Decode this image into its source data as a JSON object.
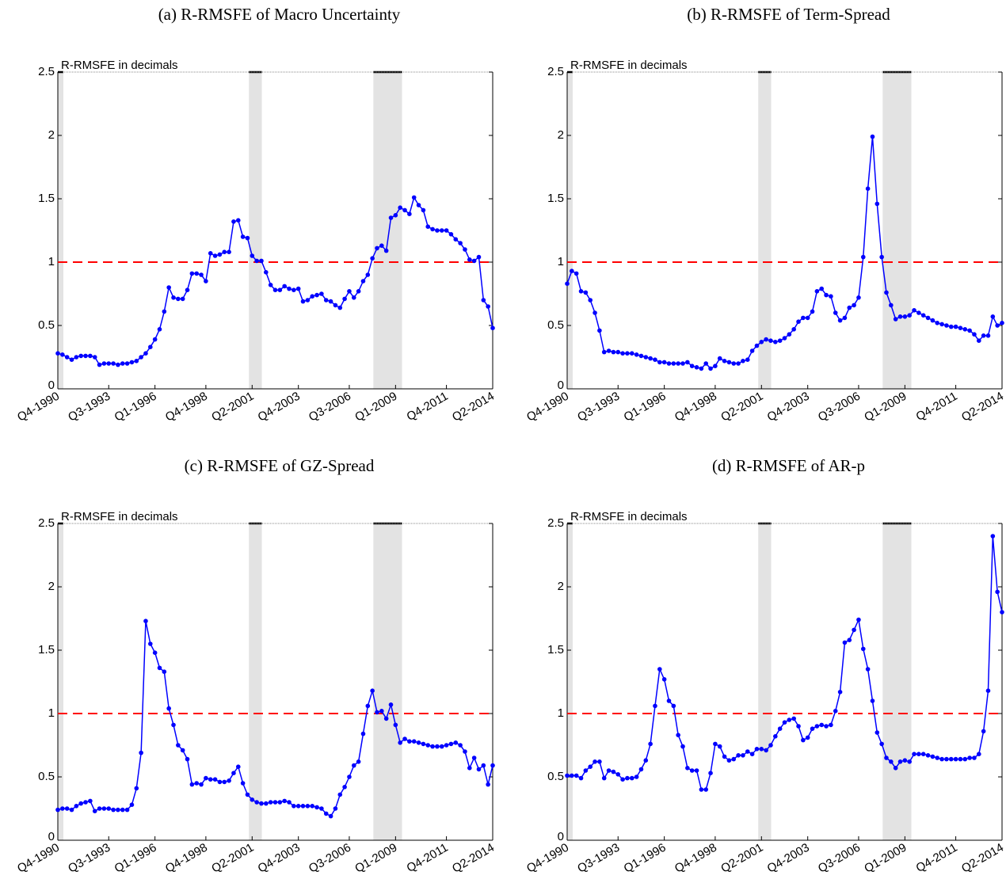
{
  "chart_data": [
    {
      "type": "line",
      "title": "(a) R-RMSFE of Macro Uncertainty",
      "ylabel": "R-RMSFE in decimals",
      "categories": [
        "Q4-1990",
        null,
        null,
        null,
        null,
        null,
        null,
        null,
        null,
        null,
        null,
        "Q3-1993",
        null,
        null,
        null,
        null,
        null,
        null,
        null,
        null,
        null,
        "Q1-1996",
        null,
        null,
        null,
        null,
        null,
        null,
        null,
        null,
        null,
        null,
        "Q4-1998",
        null,
        null,
        null,
        null,
        null,
        null,
        null,
        null,
        null,
        "Q2-2001",
        null,
        null,
        null,
        null,
        null,
        null,
        null,
        null,
        null,
        "Q4-2003",
        null,
        null,
        null,
        null,
        null,
        null,
        null,
        null,
        null,
        null,
        "Q3-2006",
        null,
        null,
        null,
        null,
        null,
        null,
        null,
        null,
        null,
        "Q1-2009",
        null,
        null,
        null,
        null,
        null,
        null,
        null,
        null,
        null,
        null,
        "Q4-2011",
        null,
        null,
        null,
        null,
        null,
        null,
        null,
        null,
        null,
        "Q2-2014"
      ],
      "values": [
        0.28,
        0.27,
        0.25,
        0.23,
        0.25,
        0.26,
        0.26,
        0.26,
        0.25,
        0.19,
        0.2,
        0.2,
        0.2,
        0.19,
        0.2,
        0.2,
        0.21,
        0.22,
        0.25,
        0.28,
        0.33,
        0.39,
        0.47,
        0.61,
        0.8,
        0.72,
        0.71,
        0.71,
        0.78,
        0.91,
        0.91,
        0.9,
        0.85,
        1.07,
        1.05,
        1.06,
        1.08,
        1.08,
        1.32,
        1.33,
        1.2,
        1.19,
        1.05,
        1.01,
        1.01,
        0.92,
        0.82,
        0.78,
        0.78,
        0.81,
        0.79,
        0.78,
        0.79,
        0.69,
        0.7,
        0.73,
        0.74,
        0.75,
        0.7,
        0.69,
        0.66,
        0.64,
        0.71,
        0.77,
        0.72,
        0.77,
        0.85,
        0.9,
        1.03,
        1.11,
        1.13,
        1.09,
        1.35,
        1.37,
        1.43,
        1.41,
        1.38,
        1.51,
        1.45,
        1.41,
        1.28,
        1.26,
        1.25,
        1.25,
        1.25,
        1.22,
        1.18,
        1.15,
        1.1,
        1.02,
        1.01,
        1.04,
        0.7,
        0.65,
        0.48
      ],
      "color": "#0000ff",
      "ylim": [
        0,
        2.5
      ],
      "yticks": [
        0,
        0.5,
        1,
        1.5,
        2,
        2.5
      ],
      "hline": 1,
      "hline_color": "#ff0000",
      "shading": [
        [
          0,
          1.2
        ],
        [
          41.3,
          44.1
        ],
        [
          68.2,
          74.4
        ]
      ]
    },
    {
      "type": "line",
      "title": "(b) R-RMSFE of Term-Spread",
      "ylabel": "R-RMSFE in decimals",
      "categories": [
        "Q4-1990",
        null,
        null,
        null,
        null,
        null,
        null,
        null,
        null,
        null,
        null,
        "Q3-1993",
        null,
        null,
        null,
        null,
        null,
        null,
        null,
        null,
        null,
        "Q1-1996",
        null,
        null,
        null,
        null,
        null,
        null,
        null,
        null,
        null,
        null,
        "Q4-1998",
        null,
        null,
        null,
        null,
        null,
        null,
        null,
        null,
        null,
        "Q2-2001",
        null,
        null,
        null,
        null,
        null,
        null,
        null,
        null,
        null,
        "Q4-2003",
        null,
        null,
        null,
        null,
        null,
        null,
        null,
        null,
        null,
        null,
        "Q3-2006",
        null,
        null,
        null,
        null,
        null,
        null,
        null,
        null,
        null,
        "Q1-2009",
        null,
        null,
        null,
        null,
        null,
        null,
        null,
        null,
        null,
        null,
        "Q4-2011",
        null,
        null,
        null,
        null,
        null,
        null,
        null,
        null,
        null,
        "Q2-2014"
      ],
      "values": [
        0.83,
        0.93,
        0.91,
        0.77,
        0.76,
        0.7,
        0.6,
        0.46,
        0.29,
        0.3,
        0.29,
        0.29,
        0.28,
        0.28,
        0.28,
        0.27,
        0.26,
        0.25,
        0.24,
        0.23,
        0.21,
        0.21,
        0.2,
        0.2,
        0.2,
        0.2,
        0.21,
        0.18,
        0.17,
        0.16,
        0.2,
        0.16,
        0.18,
        0.24,
        0.22,
        0.21,
        0.2,
        0.2,
        0.22,
        0.23,
        0.3,
        0.34,
        0.37,
        0.39,
        0.38,
        0.37,
        0.38,
        0.4,
        0.43,
        0.47,
        0.53,
        0.56,
        0.56,
        0.61,
        0.77,
        0.79,
        0.74,
        0.73,
        0.6,
        0.54,
        0.56,
        0.64,
        0.66,
        0.72,
        1.04,
        1.58,
        1.99,
        1.46,
        1.04,
        0.76,
        0.66,
        0.55,
        0.57,
        0.57,
        0.58,
        0.62,
        0.6,
        0.58,
        0.56,
        0.54,
        0.52,
        0.51,
        0.5,
        0.49,
        0.49,
        0.48,
        0.47,
        0.46,
        0.43,
        0.38,
        0.42,
        0.42,
        0.57,
        0.5,
        0.52
      ],
      "color": "#0000ff",
      "ylim": [
        0,
        2.5
      ],
      "yticks": [
        0,
        0.5,
        1,
        1.5,
        2,
        2.5
      ],
      "hline": 1,
      "hline_color": "#ff0000",
      "shading": [
        [
          0,
          1.2
        ],
        [
          41.3,
          44.1
        ],
        [
          68.2,
          74.4
        ]
      ]
    },
    {
      "type": "line",
      "title": "(c) R-RMSFE of GZ-Spread",
      "ylabel": "R-RMSFE in decimals",
      "categories": [
        "Q4-1990",
        null,
        null,
        null,
        null,
        null,
        null,
        null,
        null,
        null,
        null,
        "Q3-1993",
        null,
        null,
        null,
        null,
        null,
        null,
        null,
        null,
        null,
        "Q1-1996",
        null,
        null,
        null,
        null,
        null,
        null,
        null,
        null,
        null,
        null,
        "Q4-1998",
        null,
        null,
        null,
        null,
        null,
        null,
        null,
        null,
        null,
        "Q2-2001",
        null,
        null,
        null,
        null,
        null,
        null,
        null,
        null,
        null,
        "Q4-2003",
        null,
        null,
        null,
        null,
        null,
        null,
        null,
        null,
        null,
        null,
        "Q3-2006",
        null,
        null,
        null,
        null,
        null,
        null,
        null,
        null,
        null,
        "Q1-2009",
        null,
        null,
        null,
        null,
        null,
        null,
        null,
        null,
        null,
        null,
        "Q4-2011",
        null,
        null,
        null,
        null,
        null,
        null,
        null,
        null,
        null,
        "Q2-2014"
      ],
      "values": [
        0.24,
        0.25,
        0.25,
        0.24,
        0.27,
        0.29,
        0.3,
        0.31,
        0.23,
        0.25,
        0.25,
        0.25,
        0.24,
        0.24,
        0.24,
        0.24,
        0.28,
        0.41,
        0.69,
        1.73,
        1.55,
        1.48,
        1.36,
        1.33,
        1.04,
        0.91,
        0.75,
        0.71,
        0.64,
        0.44,
        0.45,
        0.44,
        0.49,
        0.48,
        0.48,
        0.46,
        0.46,
        0.47,
        0.53,
        0.58,
        0.45,
        0.36,
        0.32,
        0.3,
        0.29,
        0.29,
        0.3,
        0.3,
        0.3,
        0.31,
        0.3,
        0.27,
        0.27,
        0.27,
        0.27,
        0.27,
        0.26,
        0.25,
        0.21,
        0.19,
        0.25,
        0.36,
        0.42,
        0.5,
        0.59,
        0.62,
        0.84,
        1.06,
        1.18,
        1.01,
        1.02,
        0.96,
        1.07,
        0.91,
        0.77,
        0.8,
        0.78,
        0.78,
        0.77,
        0.76,
        0.75,
        0.74,
        0.74,
        0.74,
        0.75,
        0.76,
        0.77,
        0.75,
        0.7,
        0.57,
        0.65,
        0.56,
        0.59,
        0.44,
        0.59
      ],
      "color": "#0000ff",
      "ylim": [
        0,
        2.5
      ],
      "yticks": [
        0,
        0.5,
        1,
        1.5,
        2,
        2.5
      ],
      "hline": 1,
      "hline_color": "#ff0000",
      "shading": [
        [
          0,
          1.2
        ],
        [
          41.3,
          44.1
        ],
        [
          68.2,
          74.4
        ]
      ]
    },
    {
      "type": "line",
      "title": "(d) R-RMSFE of AR-p",
      "ylabel": "R-RMSFE in decimals",
      "categories": [
        "Q4-1990",
        null,
        null,
        null,
        null,
        null,
        null,
        null,
        null,
        null,
        null,
        "Q3-1993",
        null,
        null,
        null,
        null,
        null,
        null,
        null,
        null,
        null,
        "Q1-1996",
        null,
        null,
        null,
        null,
        null,
        null,
        null,
        null,
        null,
        null,
        "Q4-1998",
        null,
        null,
        null,
        null,
        null,
        null,
        null,
        null,
        null,
        "Q2-2001",
        null,
        null,
        null,
        null,
        null,
        null,
        null,
        null,
        null,
        "Q4-2003",
        null,
        null,
        null,
        null,
        null,
        null,
        null,
        null,
        null,
        null,
        "Q3-2006",
        null,
        null,
        null,
        null,
        null,
        null,
        null,
        null,
        null,
        "Q1-2009",
        null,
        null,
        null,
        null,
        null,
        null,
        null,
        null,
        null,
        null,
        "Q4-2011",
        null,
        null,
        null,
        null,
        null,
        null,
        null,
        null,
        null,
        "Q2-2014"
      ],
      "values": [
        0.51,
        0.51,
        0.51,
        0.49,
        0.55,
        0.58,
        0.62,
        0.62,
        0.49,
        0.55,
        0.54,
        0.52,
        0.48,
        0.49,
        0.49,
        0.5,
        0.56,
        0.63,
        0.76,
        1.06,
        1.35,
        1.27,
        1.1,
        1.06,
        0.83,
        0.74,
        0.57,
        0.55,
        0.55,
        0.4,
        0.4,
        0.53,
        0.76,
        0.74,
        0.66,
        0.63,
        0.64,
        0.67,
        0.67,
        0.7,
        0.68,
        0.72,
        0.72,
        0.71,
        0.75,
        0.82,
        0.88,
        0.93,
        0.95,
        0.96,
        0.9,
        0.79,
        0.81,
        0.88,
        0.9,
        0.91,
        0.9,
        0.91,
        1.02,
        1.17,
        1.56,
        1.58,
        1.66,
        1.74,
        1.51,
        1.35,
        1.1,
        0.85,
        0.76,
        0.65,
        0.62,
        0.57,
        0.62,
        0.63,
        0.62,
        0.68,
        0.68,
        0.68,
        0.67,
        0.66,
        0.65,
        0.64,
        0.64,
        0.64,
        0.64,
        0.64,
        0.64,
        0.65,
        0.65,
        0.68,
        0.86,
        1.18,
        2.4,
        1.96,
        1.8
      ],
      "color": "#0000ff",
      "ylim": [
        0,
        2.5
      ],
      "yticks": [
        0,
        0.5,
        1,
        1.5,
        2,
        2.5
      ],
      "hline": 1,
      "hline_color": "#ff0000",
      "shading": [
        [
          0,
          1.2
        ],
        [
          41.3,
          44.1
        ],
        [
          68.2,
          74.4
        ]
      ]
    }
  ]
}
